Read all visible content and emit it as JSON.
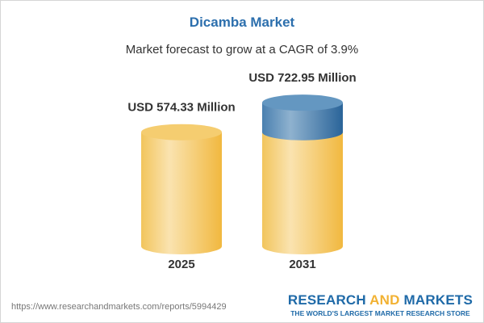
{
  "header": {
    "title": "Dicamba Market",
    "subtitle": "Market forecast to grow at a CAGR of 3.9%"
  },
  "chart_data": {
    "type": "bar",
    "title": "Dicamba Market",
    "subtitle": "Market forecast to grow at a CAGR of 3.9%",
    "categories": [
      "2025",
      "2031"
    ],
    "values": [
      574.33,
      722.95
    ],
    "data_labels": [
      "USD 574.33 Million",
      "USD 722.95 Million"
    ],
    "unit": "USD Million",
    "cagr": "3.9%",
    "grid": false,
    "colors": {
      "base": "#f3c65a",
      "growth": "#4f87b5",
      "title": "#2c6fad"
    }
  },
  "footer": {
    "url": "https://www.researchandmarkets.com/reports/5994429",
    "logo_part1": "RESEARCH ",
    "logo_part2": "AND",
    "logo_part3": " MARKETS",
    "tagline": "THE WORLD'S LARGEST MARKET RESEARCH STORE"
  }
}
